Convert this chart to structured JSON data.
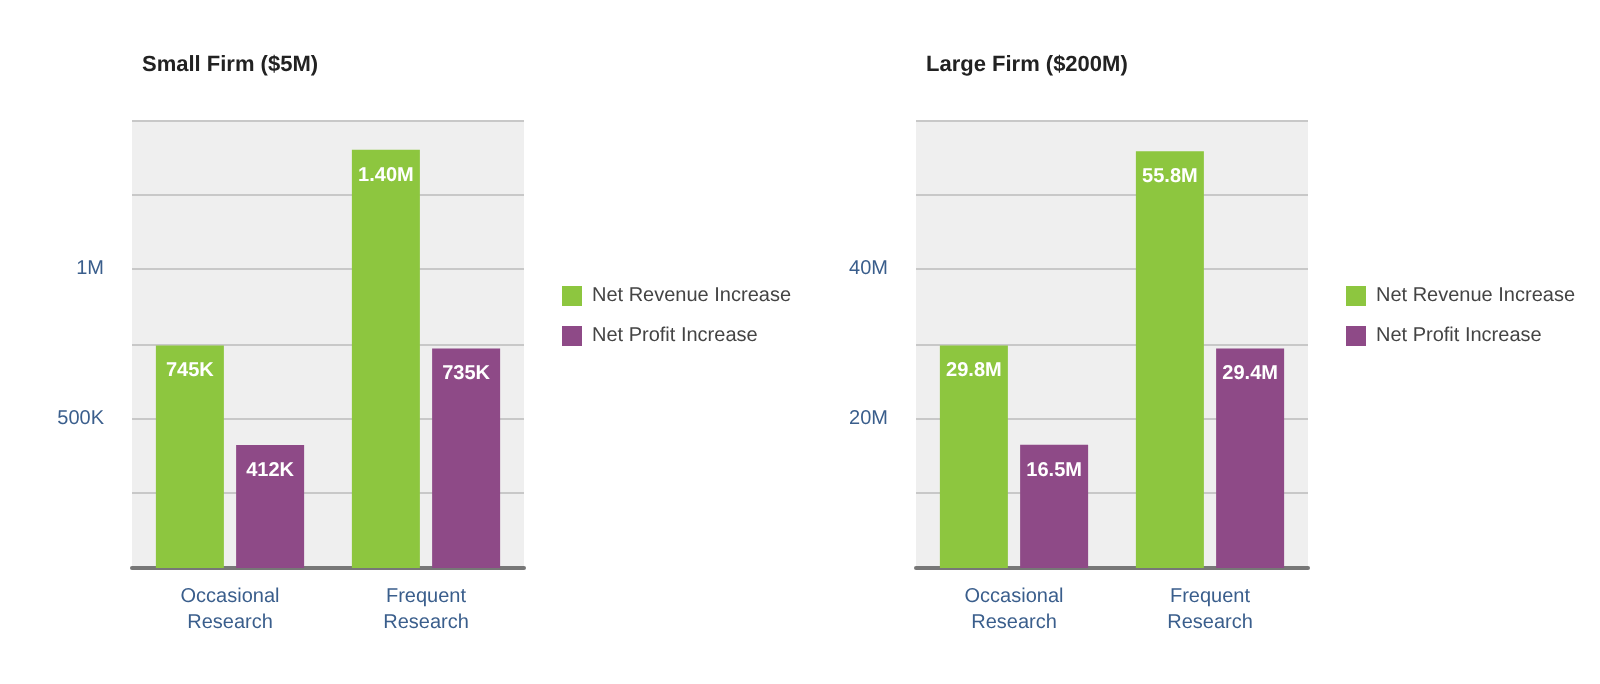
{
  "chart_data": [
    {
      "type": "bar",
      "title": "Small Firm ($5M)",
      "categories": [
        "Occasional\nResearch",
        "Frequent\nResearch"
      ],
      "series": [
        {
          "name": "Net Revenue Increase",
          "color": "#8dc63f",
          "values": [
            745000,
            1400000
          ],
          "value_labels": [
            "745K",
            "1.40M"
          ]
        },
        {
          "name": "Net Profit Increase",
          "color": "#8e4a87",
          "values": [
            412000,
            735000
          ],
          "value_labels": [
            "412K",
            "735K"
          ]
        }
      ],
      "ylim": [
        0,
        1500000
      ],
      "yticks": [
        {
          "value": 0,
          "label": null
        },
        {
          "value": 250000,
          "label": null
        },
        {
          "value": 500000,
          "label": "500K"
        },
        {
          "value": 750000,
          "label": null
        },
        {
          "value": 1000000,
          "label": "1M"
        },
        {
          "value": 1250000,
          "label": null
        },
        {
          "value": 1500000,
          "label": null
        }
      ],
      "grid": "y",
      "legend": "right"
    },
    {
      "type": "bar",
      "title": "Large Firm ($200M)",
      "categories": [
        "Occasional\nResearch",
        "Frequent\nResearch"
      ],
      "series": [
        {
          "name": "Net Revenue Increase",
          "color": "#8dc63f",
          "values": [
            29800000,
            55800000
          ],
          "value_labels": [
            "29.8M",
            "55.8M"
          ]
        },
        {
          "name": "Net Profit Increase",
          "color": "#8e4a87",
          "values": [
            16500000,
            29400000
          ],
          "value_labels": [
            "16.5M",
            "29.4M"
          ]
        }
      ],
      "ylim": [
        0,
        60000000
      ],
      "yticks": [
        {
          "value": 0,
          "label": null
        },
        {
          "value": 10000000,
          "label": null
        },
        {
          "value": 20000000,
          "label": "20M"
        },
        {
          "value": 30000000,
          "label": null
        },
        {
          "value": 40000000,
          "label": "40M"
        },
        {
          "value": 50000000,
          "label": null
        },
        {
          "value": 60000000,
          "label": null
        }
      ],
      "grid": "y",
      "legend": "right"
    }
  ]
}
